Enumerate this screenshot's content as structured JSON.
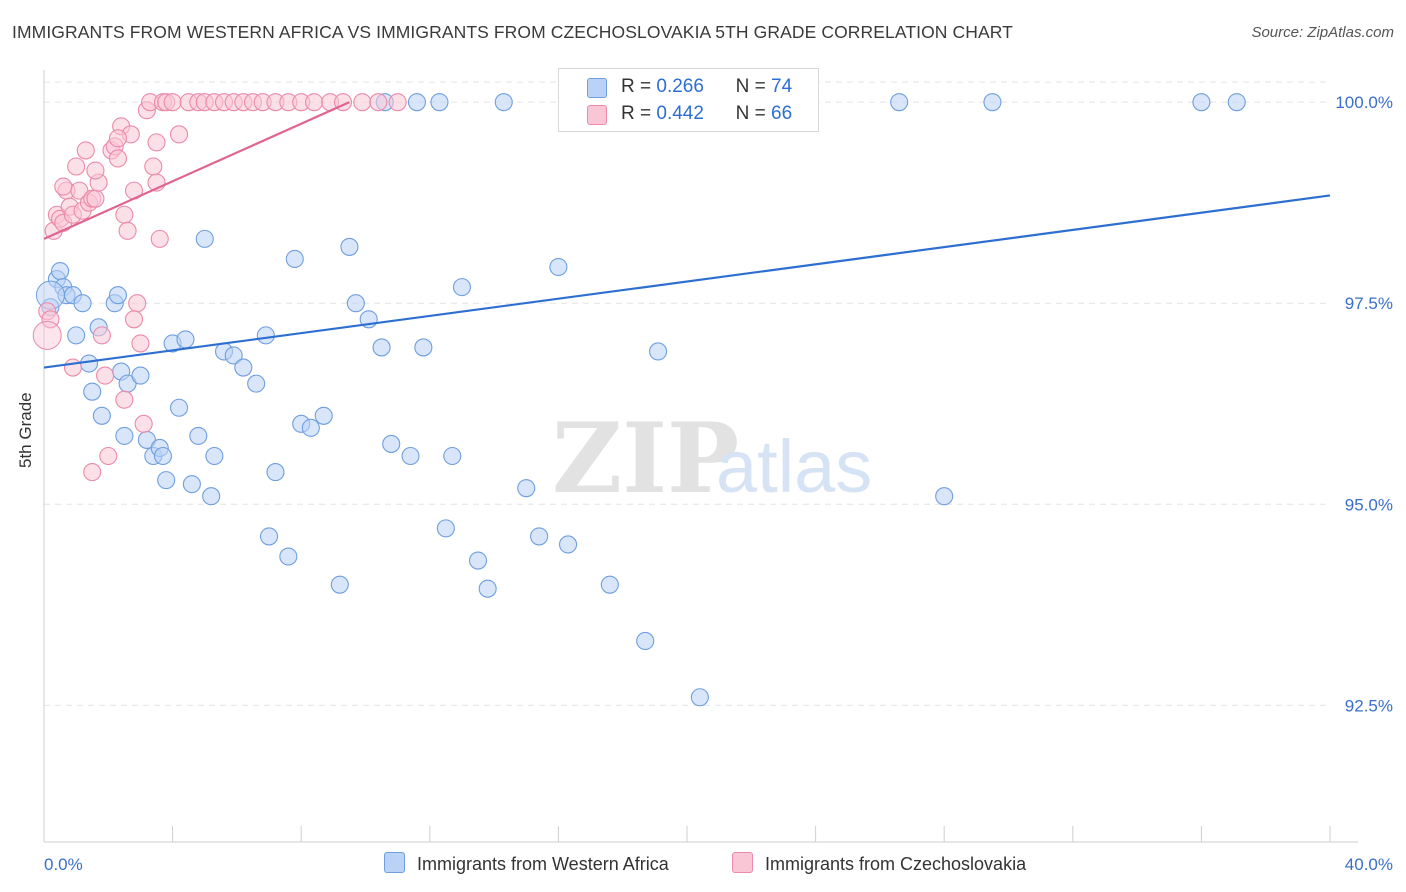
{
  "title": "IMMIGRANTS FROM WESTERN AFRICA VS IMMIGRANTS FROM CZECHOSLOVAKIA 5TH GRADE CORRELATION CHART",
  "source": "Source: ZipAtlas.com",
  "watermark": {
    "zip": "ZIP",
    "atlas": "atlas"
  },
  "legend": {
    "r_label": "R =",
    "n_label": "N =",
    "rows": [
      {
        "r": "0.266",
        "n": "74"
      },
      {
        "r": "0.442",
        "n": "66"
      }
    ]
  },
  "colors": {
    "blue_fill": "#b9d2f5",
    "blue_stroke": "#6f9fde",
    "blue_line": "#2d6fd1",
    "pink_fill": "#f9c6d6",
    "pink_stroke": "#eb8aab",
    "pink_line": "#e0648f",
    "axis_text": "#3a6fc9",
    "grid": "#e3e3e3"
  },
  "chart_data": {
    "type": "scatter",
    "title": "IMMIGRANTS FROM WESTERN AFRICA VS IMMIGRANTS FROM CZECHOSLOVAKIA 5TH GRADE CORRELATION CHART",
    "xlabel": "",
    "ylabel": "5th Grade",
    "xlim": [
      0,
      40
    ],
    "ylim": [
      90.8,
      100.4
    ],
    "x_tick_labels": [
      {
        "value": 0,
        "label": "0.0%"
      },
      {
        "value": 40,
        "label": "40.0%"
      }
    ],
    "y_ticks": [
      {
        "value": 92.5,
        "label": "92.5%"
      },
      {
        "value": 95.0,
        "label": "95.0%"
      },
      {
        "value": 97.5,
        "label": "97.5%"
      },
      {
        "value": 100.0,
        "label": "100.0%"
      }
    ],
    "grid": true,
    "legend_position": "top-center",
    "series": [
      {
        "name": "Immigrants from Western Africa",
        "color": "#6f9fde",
        "r": 0.266,
        "n": 74,
        "trendline": {
          "x": [
            0,
            40
          ],
          "y": [
            96.7,
            98.84
          ]
        },
        "points": [
          [
            0.2,
            97.45
          ],
          [
            0.4,
            97.8
          ],
          [
            0.5,
            97.9
          ],
          [
            0.6,
            97.7
          ],
          [
            0.7,
            97.6
          ],
          [
            0.9,
            97.6
          ],
          [
            1.0,
            97.1
          ],
          [
            1.2,
            97.5
          ],
          [
            1.4,
            96.75
          ],
          [
            1.5,
            96.4
          ],
          [
            1.7,
            97.2
          ],
          [
            1.8,
            96.1
          ],
          [
            2.2,
            97.5
          ],
          [
            2.3,
            97.6
          ],
          [
            2.4,
            96.65
          ],
          [
            2.5,
            95.85
          ],
          [
            2.6,
            96.5
          ],
          [
            3.0,
            96.6
          ],
          [
            3.2,
            95.8
          ],
          [
            3.4,
            95.6
          ],
          [
            3.6,
            95.7
          ],
          [
            3.7,
            95.6
          ],
          [
            3.8,
            95.3
          ],
          [
            4.0,
            97.0
          ],
          [
            4.2,
            96.2
          ],
          [
            4.4,
            97.05
          ],
          [
            4.6,
            95.25
          ],
          [
            4.8,
            95.85
          ],
          [
            5.0,
            98.3
          ],
          [
            5.2,
            95.1
          ],
          [
            5.3,
            95.6
          ],
          [
            5.6,
            96.9
          ],
          [
            5.9,
            96.85
          ],
          [
            6.2,
            96.7
          ],
          [
            6.6,
            96.5
          ],
          [
            6.9,
            97.1
          ],
          [
            7.0,
            94.6
          ],
          [
            7.2,
            95.4
          ],
          [
            7.6,
            94.35
          ],
          [
            7.8,
            98.05
          ],
          [
            8.0,
            96.0
          ],
          [
            8.3,
            95.95
          ],
          [
            8.7,
            96.1
          ],
          [
            9.2,
            94.0
          ],
          [
            9.5,
            98.2
          ],
          [
            9.7,
            97.5
          ],
          [
            10.1,
            97.3
          ],
          [
            10.5,
            96.95
          ],
          [
            10.8,
            95.75
          ],
          [
            11.4,
            95.6
          ],
          [
            11.8,
            96.95
          ],
          [
            12.5,
            94.7
          ],
          [
            12.7,
            95.6
          ],
          [
            13.0,
            97.7
          ],
          [
            13.5,
            94.3
          ],
          [
            13.8,
            93.95
          ],
          [
            15.0,
            95.2
          ],
          [
            15.4,
            94.6
          ],
          [
            16.0,
            97.95
          ],
          [
            16.3,
            94.5
          ],
          [
            17.6,
            94.0
          ],
          [
            18.7,
            93.3
          ],
          [
            19.1,
            96.9
          ],
          [
            20.4,
            92.6
          ],
          [
            21.3,
            100.0
          ],
          [
            26.6,
            100.0
          ],
          [
            28.0,
            95.1
          ],
          [
            29.5,
            100.0
          ],
          [
            36.0,
            100.0
          ],
          [
            37.1,
            100.0
          ],
          [
            10.6,
            100.0
          ],
          [
            11.6,
            100.0
          ],
          [
            12.3,
            100.0
          ],
          [
            14.3,
            100.0
          ]
        ]
      },
      {
        "name": "Immigrants from Czechoslovakia",
        "color": "#eb8aab",
        "r": 0.442,
        "n": 66,
        "trendline": {
          "x": [
            0,
            9.5
          ],
          "y": [
            98.3,
            100.0
          ]
        },
        "points": [
          [
            0.1,
            97.4
          ],
          [
            0.2,
            97.3
          ],
          [
            0.3,
            98.4
          ],
          [
            0.4,
            98.6
          ],
          [
            0.5,
            98.55
          ],
          [
            0.6,
            98.5
          ],
          [
            0.7,
            98.9
          ],
          [
            0.8,
            98.7
          ],
          [
            0.9,
            98.6
          ],
          [
            1.0,
            99.2
          ],
          [
            1.1,
            98.9
          ],
          [
            1.2,
            98.65
          ],
          [
            1.3,
            99.4
          ],
          [
            1.4,
            98.75
          ],
          [
            1.5,
            98.8
          ],
          [
            1.6,
            98.8
          ],
          [
            1.7,
            99.0
          ],
          [
            1.8,
            97.1
          ],
          [
            1.9,
            96.6
          ],
          [
            2.0,
            95.6
          ],
          [
            2.1,
            99.4
          ],
          [
            2.2,
            99.45
          ],
          [
            2.3,
            99.3
          ],
          [
            2.4,
            99.7
          ],
          [
            2.5,
            98.6
          ],
          [
            2.6,
            98.4
          ],
          [
            2.7,
            99.6
          ],
          [
            2.8,
            98.9
          ],
          [
            2.9,
            97.5
          ],
          [
            3.0,
            97.0
          ],
          [
            3.1,
            96.0
          ],
          [
            3.2,
            99.9
          ],
          [
            3.3,
            100.0
          ],
          [
            3.4,
            99.2
          ],
          [
            3.5,
            99.5
          ],
          [
            3.6,
            98.3
          ],
          [
            3.7,
            100.0
          ],
          [
            3.8,
            100.0
          ],
          [
            4.0,
            100.0
          ],
          [
            4.2,
            99.6
          ],
          [
            4.5,
            100.0
          ],
          [
            4.8,
            100.0
          ],
          [
            5.0,
            100.0
          ],
          [
            5.3,
            100.0
          ],
          [
            5.6,
            100.0
          ],
          [
            5.9,
            100.0
          ],
          [
            6.2,
            100.0
          ],
          [
            6.5,
            100.0
          ],
          [
            6.8,
            100.0
          ],
          [
            7.2,
            100.0
          ],
          [
            7.6,
            100.0
          ],
          [
            8.0,
            100.0
          ],
          [
            8.4,
            100.0
          ],
          [
            8.9,
            100.0
          ],
          [
            9.3,
            100.0
          ],
          [
            9.9,
            100.0
          ],
          [
            10.4,
            100.0
          ],
          [
            11.0,
            100.0
          ],
          [
            1.5,
            95.4
          ],
          [
            2.3,
            99.55
          ],
          [
            0.9,
            96.7
          ],
          [
            1.6,
            99.15
          ],
          [
            2.8,
            97.3
          ],
          [
            3.5,
            99.0
          ],
          [
            0.6,
            98.95
          ],
          [
            2.5,
            96.3
          ]
        ]
      }
    ]
  }
}
